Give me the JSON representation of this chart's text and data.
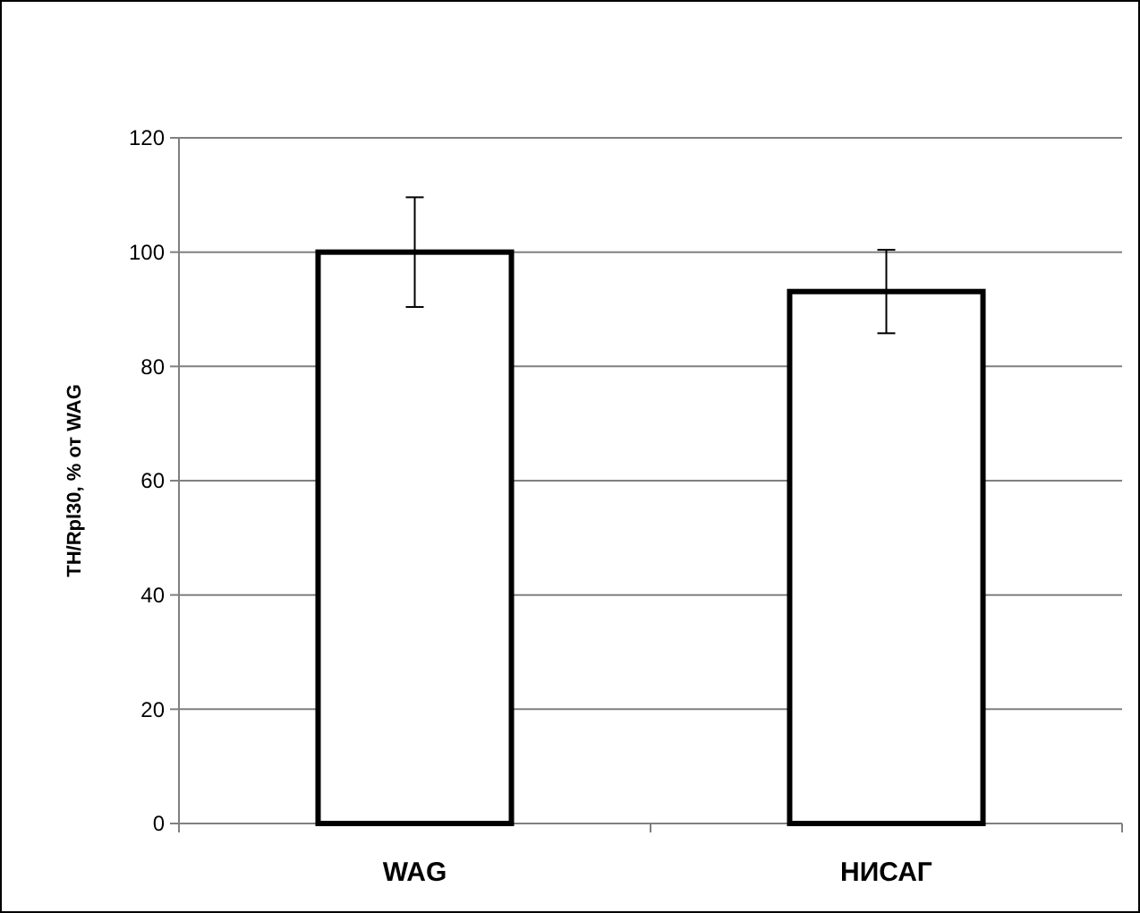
{
  "chart_data": {
    "type": "bar",
    "ylabel": "TH/Rpl30, % от WAG",
    "categories": [
      "WAG",
      "НИСАГ"
    ],
    "values": [
      100,
      93.1
    ],
    "errors": [
      9.6,
      7.3
    ],
    "color": "#ffffff",
    "ylim": [
      0,
      120
    ],
    "yticks": [
      0,
      20,
      40,
      60,
      80,
      100,
      120
    ],
    "grid": "y"
  }
}
